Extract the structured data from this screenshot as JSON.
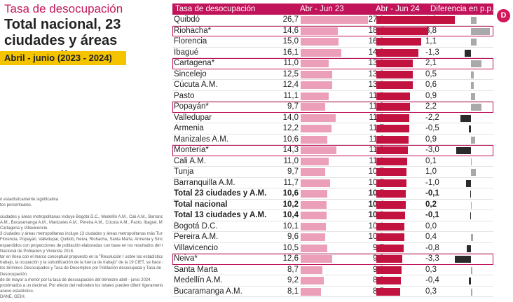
{
  "title": "Tasa de desocupación",
  "subtitle": "Total nacional, 23 ciudades y áreas metropolitanas",
  "period": "Abril - junio (2023 - 2024)",
  "logo_text": "D",
  "notes": [
    "n estadísticamente significativa",
    "tos porcentuales.",
    "",
    "ciudades y áreas metropolitanas incluye Bogotá D.C., Medellín A.M., Cali A.M., Barranquilla",
    "A.M., Bucaramanga A.M., Manizales A.M., Pereira A.M., Cúcuta A.M., Pasto, Ibagué, Montería,",
    "Cartagena y Villavicencio.",
    "3 ciudades y áreas metropolitanas incluye 13 ciudades y áreas metropolitanas más Tunja,",
    "Florencia, Popayán, Valledupar, Quibdó, Neiva, Riohacha, Santa Marta, Armenia y Sincelejo.",
    "expandidos con proyecciones de población elaboradas con base en los resultados del Censo",
    "Nacional de Población y Vivienda 2018.",
    "tar en línea con el marco conceptual propuesto en la \"Resolución I sobre las estadísticas del",
    "trabajo, la ocupación y la subutilización de la fuerza de trabajo\" de la 19 CIET, se hace ajuste de",
    "los términos Desocupados y Tasa de Desempleo por Población desocupada y Tasa de",
    "Desocupación.",
    "de de mayor a menor por la tasa de desocupación del trimestre abril - junio 2024.",
    "proximados a un decimal. Por efecto del redondeo los totales pueden diferir ligeramente del",
    "anexo estadístico.",
    "DANE, GEIH."
  ],
  "chart_data": {
    "type": "table",
    "columns": [
      "Tasa de desocupación",
      "Abr - Jun 23",
      "Abr - Jun 24",
      "Diferencia en p.p."
    ],
    "rows": [
      {
        "city": "Quibdó",
        "v23": "26,7",
        "v24": "27,9",
        "diff": "1,2",
        "d": 1.2,
        "hl": false,
        "bold": false
      },
      {
        "city": "Riohacha*",
        "v23": "14,6",
        "v24": "18,4",
        "diff": "3,8",
        "d": 3.8,
        "hl": true,
        "bold": false
      },
      {
        "city": "Florencia",
        "v23": "15,0",
        "v24": "16,1",
        "diff": "1,1",
        "d": 1.1,
        "hl": false,
        "bold": false
      },
      {
        "city": "Ibagué",
        "v23": "16,1",
        "v24": "14,9",
        "diff": "-1,3",
        "d": -1.3,
        "hl": false,
        "bold": false
      },
      {
        "city": "Cartagena*",
        "v23": "11,0",
        "v24": "13,1",
        "diff": "2,1",
        "d": 2.1,
        "hl": true,
        "bold": false
      },
      {
        "city": "Sincelejo",
        "v23": "12,5",
        "v24": "13,0",
        "diff": "0,5",
        "d": 0.5,
        "hl": false,
        "bold": false
      },
      {
        "city": "Cúcuta A.M.",
        "v23": "12,4",
        "v24": "13,0",
        "diff": "0,6",
        "d": 0.6,
        "hl": false,
        "bold": false
      },
      {
        "city": "Pasto",
        "v23": "11,1",
        "v24": "11,9",
        "diff": "0,9",
        "d": 0.9,
        "hl": false,
        "bold": false
      },
      {
        "city": "Popayán*",
        "v23": "9,7",
        "v24": "11,9",
        "diff": "2,2",
        "d": 2.2,
        "hl": true,
        "bold": false
      },
      {
        "city": "Valledupar",
        "v23": "14,0",
        "v24": "11,8",
        "diff": "-2,2",
        "d": -2.2,
        "hl": false,
        "bold": false
      },
      {
        "city": "Armenia",
        "v23": "12,2",
        "v24": "11,7",
        "diff": "-0,5",
        "d": -0.5,
        "hl": false,
        "bold": false
      },
      {
        "city": "Manizales A.M.",
        "v23": "10,6",
        "v24": "11,6",
        "diff": "0,9",
        "d": 0.9,
        "hl": false,
        "bold": false
      },
      {
        "city": "Montería*",
        "v23": "14,3",
        "v24": "11,2",
        "diff": "-3,0",
        "d": -3.0,
        "hl": true,
        "bold": false
      },
      {
        "city": "Cali A.M.",
        "v23": "11,0",
        "v24": "11,1",
        "diff": "0,1",
        "d": 0.1,
        "hl": false,
        "bold": false
      },
      {
        "city": "Tunja",
        "v23": "9,7",
        "v24": "10,7",
        "diff": "1,0",
        "d": 1.0,
        "hl": false,
        "bold": false
      },
      {
        "city": "Barranquilla A.M.",
        "v23": "11,7",
        "v24": "10,7",
        "diff": "-1,0",
        "d": -1.0,
        "hl": false,
        "bold": false
      },
      {
        "city": "Total 23 ciudades y A.M.",
        "v23": "10,6",
        "v24": "10,5",
        "diff": "-0,1",
        "d": -0.1,
        "hl": false,
        "bold": true
      },
      {
        "city": "Total nacional",
        "v23": "10,2",
        "v24": "10,4",
        "diff": "0,2",
        "d": 0.2,
        "hl": false,
        "bold": true
      },
      {
        "city": "Total 13 ciudades y A.M.",
        "v23": "10,4",
        "v24": "10,3",
        "diff": "-0,1",
        "d": -0.1,
        "hl": false,
        "bold": true
      },
      {
        "city": "Bogotá D.C.",
        "v23": "10,1",
        "v24": "10,1",
        "diff": "0,0",
        "d": 0.0,
        "hl": false,
        "bold": false
      },
      {
        "city": "Pereira A.M.",
        "v23": "9,6",
        "v24": "10,0",
        "diff": "0,4",
        "d": 0.4,
        "hl": false,
        "bold": false
      },
      {
        "city": "Villavicencio",
        "v23": "10,5",
        "v24": "9,7",
        "diff": "-0,8",
        "d": -0.8,
        "hl": false,
        "bold": false
      },
      {
        "city": "Neiva*",
        "v23": "12,6",
        "v24": "9,3",
        "diff": "-3,3",
        "d": -3.3,
        "hl": true,
        "bold": false
      },
      {
        "city": "Santa Marta",
        "v23": "8,7",
        "v24": "9,0",
        "diff": "0,3",
        "d": 0.3,
        "hl": false,
        "bold": false
      },
      {
        "city": "Medellín A.M.",
        "v23": "9,2",
        "v24": "8,8",
        "diff": "-0,4",
        "d": -0.4,
        "hl": false,
        "bold": false
      },
      {
        "city": "Bucaramanga A.M.",
        "v23": "8,1",
        "v24": "8,5",
        "diff": "0,3",
        "d": 0.3,
        "hl": false,
        "bold": false
      }
    ]
  }
}
